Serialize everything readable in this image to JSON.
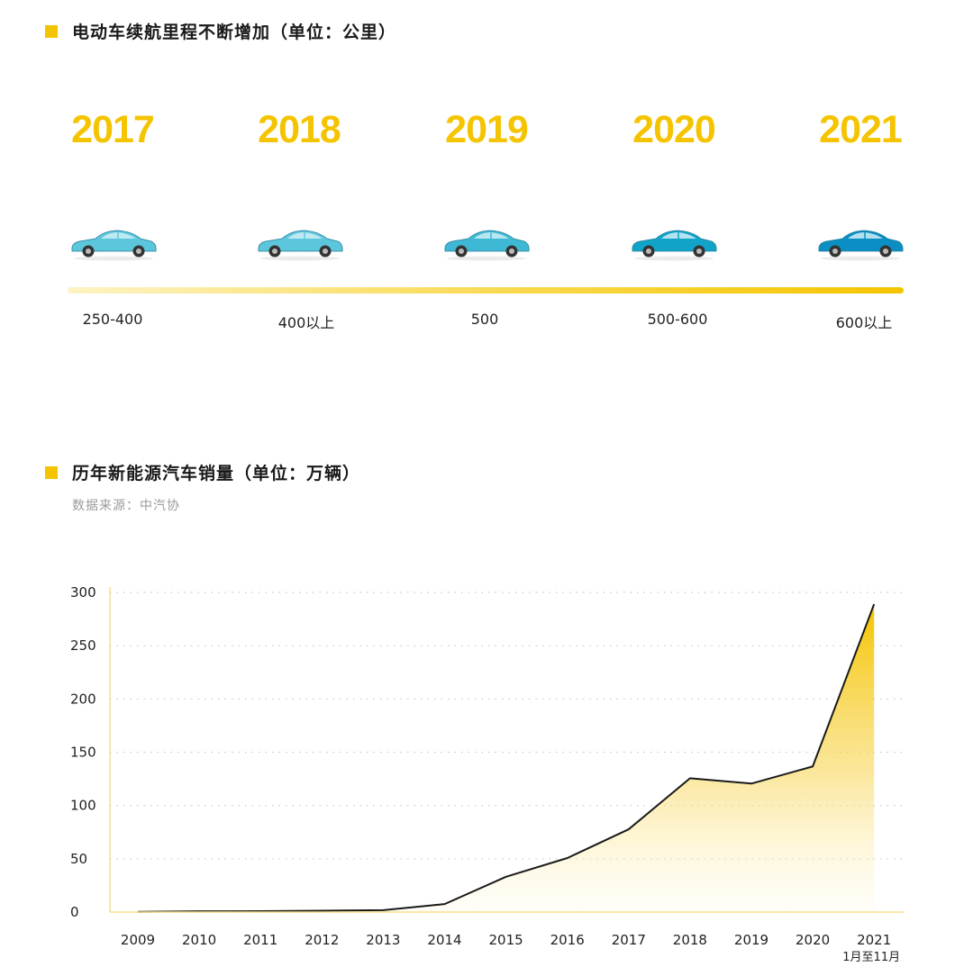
{
  "section1": {
    "title": "电动车续航里程不断增加（单位：公里）"
  },
  "timeline": [
    {
      "year": "2017",
      "range": "250-400",
      "car_color": "#5cc6dc"
    },
    {
      "year": "2018",
      "range": "400以上",
      "car_color": "#5cc6dc"
    },
    {
      "year": "2019",
      "range": "500",
      "car_color": "#3eb8d4"
    },
    {
      "year": "2020",
      "range": "500-600",
      "car_color": "#12a3c8"
    },
    {
      "year": "2021",
      "range": "600以上",
      "car_color": "#0a8ec4"
    }
  ],
  "section2": {
    "title": "历年新能源汽车销量（单位：万辆）",
    "source": "数据来源：中汽协"
  },
  "colors": {
    "accent": "#f5c400",
    "line": "#1a1a1a"
  },
  "chart_data": {
    "type": "area",
    "title": "历年新能源汽车销量（单位：万辆）",
    "xlabel": "",
    "ylabel": "",
    "categories": [
      "2009",
      "2010",
      "2011",
      "2012",
      "2013",
      "2014",
      "2015",
      "2016",
      "2017",
      "2018",
      "2019",
      "2020",
      "2021"
    ],
    "category_sublabels": [
      "",
      "",
      "",
      "",
      "",
      "",
      "",
      "",
      "",
      "",
      "",
      "",
      "1月至11月"
    ],
    "series": [
      {
        "values": [
          0.2,
          0.7,
          0.8,
          1.3,
          1.8,
          7.5,
          33.1,
          50.7,
          77.7,
          125.6,
          120.6,
          136.7,
          289
        ]
      }
    ],
    "ylim": [
      0,
      300
    ],
    "yticks": [
      0,
      50,
      100,
      150,
      200,
      250,
      300
    ],
    "grid": "horizontal dotted"
  }
}
